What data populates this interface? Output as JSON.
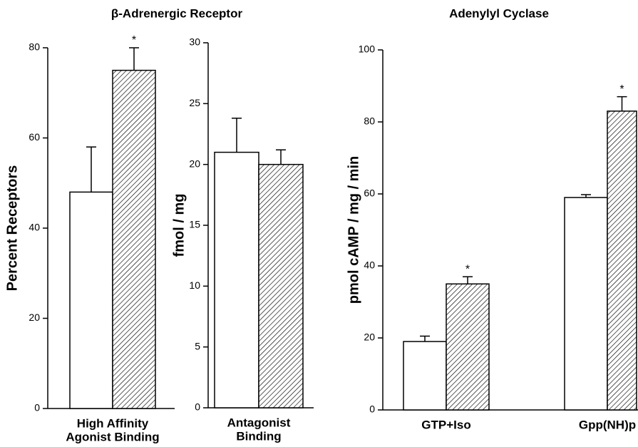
{
  "chart_data": [
    {
      "type": "bar",
      "title": "β-Adrenergic Receptor",
      "ylabel": "Percent Receptors",
      "categories": [
        [
          "High Affinity",
          "Agonist Binding"
        ]
      ],
      "series": [
        {
          "color": "#ffffff",
          "pattern": "none",
          "values": [
            48
          ],
          "errors": [
            10
          ],
          "significant": [
            false
          ]
        },
        {
          "color": "#ffffff",
          "pattern": "hatched",
          "values": [
            75
          ],
          "errors": [
            5
          ],
          "significant": [
            true
          ]
        }
      ],
      "significance_label": "*",
      "ylim": [
        0,
        80
      ],
      "yticks": [
        0,
        20,
        40,
        60,
        80
      ]
    },
    {
      "type": "bar",
      "ylabel": "fmol / mg",
      "categories": [
        [
          "Antagonist",
          "Binding"
        ]
      ],
      "series": [
        {
          "color": "#ffffff",
          "pattern": "none",
          "values": [
            21
          ],
          "errors": [
            2.8
          ],
          "significant": [
            false
          ]
        },
        {
          "color": "#ffffff",
          "pattern": "hatched",
          "values": [
            20
          ],
          "errors": [
            1.2
          ],
          "significant": [
            false
          ]
        }
      ],
      "ylim": [
        0,
        30
      ],
      "yticks": [
        0,
        5,
        10,
        15,
        20,
        25,
        30
      ]
    },
    {
      "type": "bar",
      "title": "Adenylyl Cyclase",
      "ylabel": "pmol cAMP / mg / min",
      "categories": [
        [
          "GTP+Iso"
        ],
        [
          "Gpp(NH)p"
        ]
      ],
      "series": [
        {
          "color": "#ffffff",
          "pattern": "none",
          "values": [
            19,
            59
          ],
          "errors": [
            1.5,
            0.8
          ],
          "significant": [
            false,
            false
          ]
        },
        {
          "color": "#ffffff",
          "pattern": "hatched",
          "values": [
            35,
            83
          ],
          "errors": [
            2,
            4
          ],
          "significant": [
            true,
            true
          ]
        }
      ],
      "significance_label": "*",
      "ylim": [
        0,
        100
      ],
      "yticks": [
        0,
        20,
        40,
        60,
        80,
        100
      ]
    }
  ]
}
